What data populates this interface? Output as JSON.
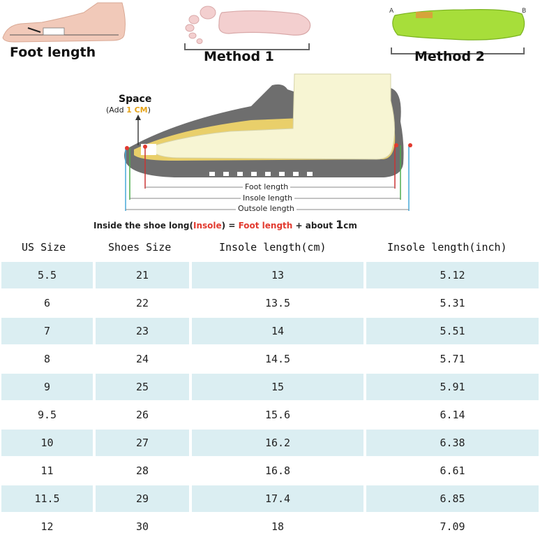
{
  "illustrations": {
    "foot_length_caption": "Foot length",
    "method1_caption": "Method 1",
    "method2_caption": "Method 2",
    "insole_mark_a": "A",
    "insole_mark_b": "B"
  },
  "diagram": {
    "space_label": "Space",
    "space_add_prefix": "(Add ",
    "space_add_value": "1 CM",
    "space_add_suffix": ")",
    "foot_length_label": "Foot length",
    "insole_length_label": "Insole length",
    "outsole_length_label": "Outsole length",
    "formula_prefix": "Inside the shoe long(",
    "formula_insole": "Insole",
    "formula_mid": ") = ",
    "formula_foot": "Foot length",
    "formula_suffix": " + about ",
    "formula_unit_value": "1",
    "formula_unit": "cm",
    "colors": {
      "outsole": "#6e6e6e",
      "insole": "#e9cf6a",
      "foot": "#f7f5d3",
      "marker": "#e23a2f",
      "accent": "#e6a317"
    }
  },
  "table": {
    "headers": [
      "US Size",
      "Shoes Size",
      "Insole length(cm)",
      "Insole length(inch)"
    ],
    "shade_color": "#dbeef2",
    "rows": [
      [
        "5.5",
        "21",
        "13",
        "5.12"
      ],
      [
        "6",
        "22",
        "13.5",
        "5.31"
      ],
      [
        "7",
        "23",
        "14",
        "5.51"
      ],
      [
        "8",
        "24",
        "14.5",
        "5.71"
      ],
      [
        "9",
        "25",
        "15",
        "5.91"
      ],
      [
        "9.5",
        "26",
        "15.6",
        "6.14"
      ],
      [
        "10",
        "27",
        "16.2",
        "6.38"
      ],
      [
        "11",
        "28",
        "16.8",
        "6.61"
      ],
      [
        "11.5",
        "29",
        "17.4",
        "6.85"
      ],
      [
        "12",
        "30",
        "18",
        "7.09"
      ]
    ]
  }
}
